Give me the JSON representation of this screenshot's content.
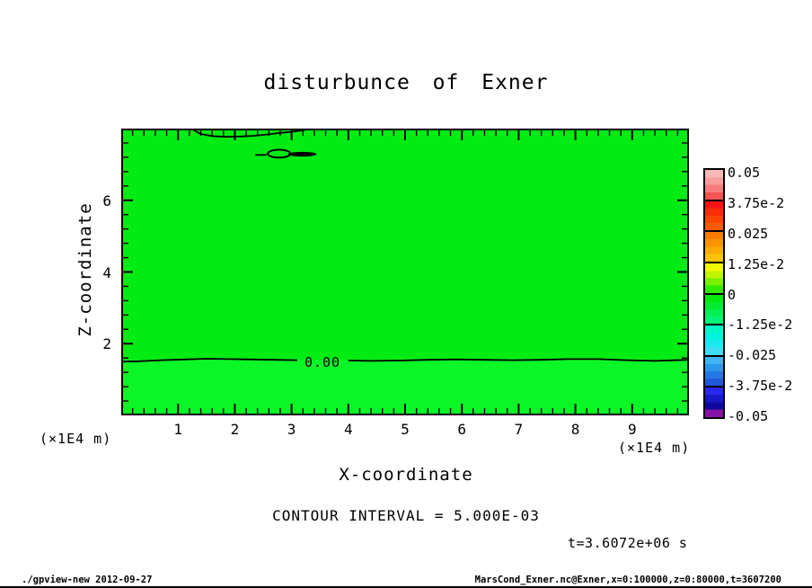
{
  "title": "disturbunce of Exner",
  "annotations": {
    "contour_interval_text": "CONTOUR INTERVAL = 5.000E-03",
    "time_text": "t=3.6072e+06 s"
  },
  "footer": {
    "left": "./gpview-new  2012-09-27",
    "right": "MarsCond_Exner.nc@Exner,x=0:100000,z=0:80000,t=3607200"
  },
  "colorbar": {
    "labels": [
      "0.05",
      "3.75e-2",
      "0.025",
      "1.25e-2",
      "0",
      "-1.25e-2",
      "-0.025",
      "-3.75e-2",
      "-0.05"
    ],
    "segments": [
      [
        "#f8b8b8",
        "#f89c9c",
        "#f87c7c",
        "#f85454"
      ],
      [
        "#fc1414",
        "#fc2c04",
        "#fc4400",
        "#fc5c00"
      ],
      [
        "#fc7c00",
        "#fc9400",
        "#fcac00",
        "#fcc400"
      ],
      [
        "#f0f800",
        "#c0f400",
        "#78f000",
        "#30ec00"
      ],
      [
        "#00e80c",
        "#00ec30",
        "#00f054",
        "#00f478"
      ],
      [
        "#00f8c8",
        "#00f4e0",
        "#20e8f0",
        "#40dcf4"
      ],
      [
        "#40b4f4",
        "#2c98ec",
        "#2478e4",
        "#2058dc"
      ],
      [
        "#2828f0",
        "#1818c8",
        "#1008a0",
        "#8812a8"
      ]
    ]
  },
  "chart_data": {
    "type": "heatmap",
    "subtype": "filled-contour-plot",
    "title": "disturbunce of Exner",
    "xlabel": "X-coordinate",
    "ylabel": "Z-coordinate",
    "x_units": "(×1E4 m)",
    "y_units": "(×1E4 m)",
    "xlim": [
      0,
      10
    ],
    "ylim": [
      0,
      8
    ],
    "xticks": [
      1,
      2,
      3,
      4,
      5,
      6,
      7,
      8,
      9
    ],
    "yticks": [
      2,
      4,
      6
    ],
    "x_minor_step": 0.2,
    "y_minor_step": 0.4,
    "grid": false,
    "legend_position": "colorbar-right",
    "contour_interval": 0.005,
    "time_seconds": 3607200,
    "colorbar_levels": [
      0.05,
      0.0375,
      0.025,
      0.0125,
      0,
      -0.0125,
      -0.025,
      -0.0375,
      -0.05
    ],
    "fill_regions": [
      {
        "description": "Exner disturbance slightly above 0, upper region z>1.55e4 m",
        "color": "#00ec12"
      },
      {
        "description": "Exner disturbance slightly below 0, lower region z<1.55e4 m",
        "color": "#0bf626"
      }
    ],
    "contour_features": [
      {
        "type": "polyline",
        "level": 0,
        "label": "0.00",
        "x": [
          0,
          0.3,
          0.7,
          1.1,
          1.5,
          1.9,
          2.3,
          2.7,
          3.1
        ],
        "z": [
          1.5,
          1.51,
          1.54,
          1.56,
          1.58,
          1.57,
          1.56,
          1.55,
          1.54
        ]
      },
      {
        "type": "polyline",
        "level": 0,
        "x": [
          4.0,
          4.4,
          4.9,
          5.4,
          5.9,
          6.4,
          6.9,
          7.4,
          7.9,
          8.4,
          8.9,
          9.4,
          10
        ],
        "z": [
          1.53,
          1.52,
          1.53,
          1.55,
          1.56,
          1.55,
          1.54,
          1.55,
          1.57,
          1.57,
          1.54,
          1.52,
          1.55
        ]
      },
      {
        "type": "polyline",
        "level": 0,
        "x": [
          1.27,
          1.4,
          1.6,
          1.85,
          2.1,
          2.35,
          2.6,
          2.8,
          3.0,
          3.15,
          3.24
        ],
        "z": [
          7.96,
          7.85,
          7.79,
          7.77,
          7.78,
          7.8,
          7.84,
          7.88,
          7.91,
          7.94,
          7.96
        ]
      },
      {
        "type": "ellipse",
        "level": 0,
        "cx": 2.78,
        "cz": 7.3,
        "rx": 0.2,
        "rz": 0.11
      },
      {
        "type": "blob",
        "level": 0,
        "cx": 3.19,
        "cz": 7.285,
        "rx": 0.25,
        "rz": 0.065
      },
      {
        "type": "polyline",
        "level": 0,
        "x": [
          2.36,
          2.56
        ],
        "z": [
          7.265,
          7.265
        ]
      }
    ]
  }
}
